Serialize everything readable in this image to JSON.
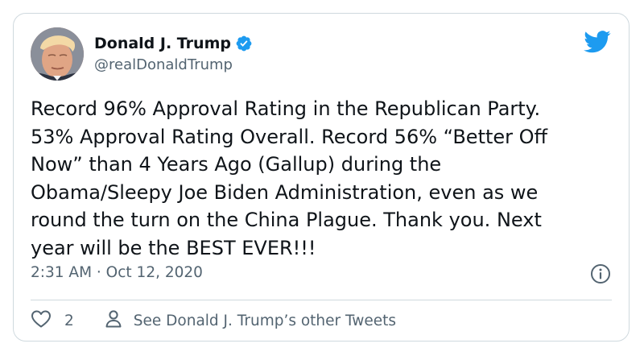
{
  "tweet": {
    "author": {
      "display_name": "Donald J. Trump",
      "handle": "@realDonaldTrump",
      "verified": true
    },
    "text": "Record 96% Approval Rating in the Republican Party.\n53% Approval Rating Overall. Record 56% “Better Off\nNow” than 4 Years Ago (Gallup) during the\nObama/Sleepy Joe Biden Administration, even as we\nround the turn on the China Plague. Thank you. Next\nyear will be the BEST EVER!!!",
    "timestamp": "2:31 AM · Oct 12, 2020",
    "like_count": "2",
    "profile_link_label": "See Donald J. Trump’s other Tweets"
  },
  "icons": {
    "brand": "twitter-bird-icon",
    "verified": "verified-badge-icon",
    "info": "info-icon",
    "like": "heart-icon",
    "profile": "person-icon"
  },
  "colors": {
    "brand_blue": "#1d9bf0",
    "text_primary": "#0f1419",
    "text_secondary": "#536471",
    "border": "#cfd9de"
  }
}
